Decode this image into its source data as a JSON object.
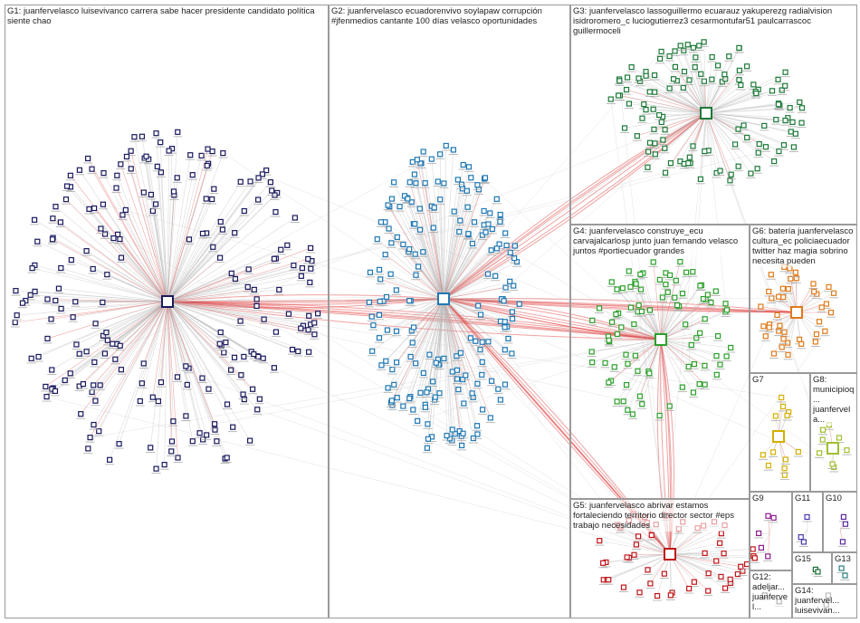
{
  "groups": [
    {
      "label": "G1: juanfervelasco luisevivanco carrera sabe hacer presidente candidato política siente chao"
    },
    {
      "label": "G2: juanfervelasco ecuadorenvivo soylapaw corrupción #jfenmedios cantante 100 días velasco oportunidades"
    },
    {
      "label": "G3: juanfervelasco lassoguillermo ecuarauz yakuperezg radialvision isidroromero_c luciogutierrez3 cesarmontufar51 paulcarrascoc guillermoceli"
    },
    {
      "label": "G4: juanfervelasco construye_ecu carvajalcarlosp junto juan fernando velasco juntos #portiecuador grandes"
    },
    {
      "label": "G5: juanfervelasco abrivar estamos fortaleciendo territorio director sector #eps trabajo necesidades"
    },
    {
      "label": "G6: batería juanfervelasco cultura_ec policiaecuador twitter haz magia sobrino necesita pueden"
    },
    {
      "label": "G7"
    },
    {
      "label": "G8: municipioq... juanfervela..."
    },
    {
      "label": "G9"
    },
    {
      "label": "G10"
    },
    {
      "label": "G11"
    },
    {
      "label": "G12: adeljar... juanfervel..."
    },
    {
      "label": "G13"
    },
    {
      "label": "G14: juanfervel... luisevivan..."
    },
    {
      "label": "G15"
    }
  ]
}
